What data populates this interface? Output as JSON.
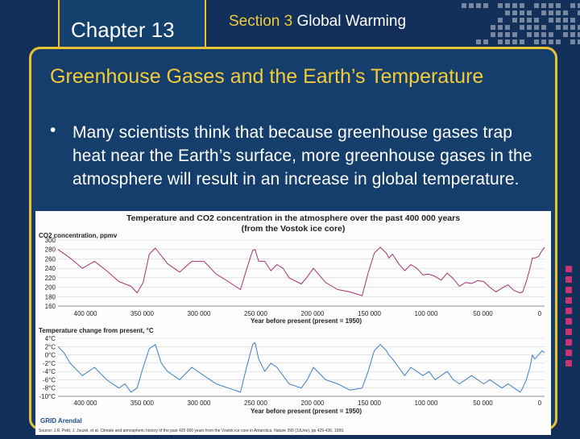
{
  "header": {
    "chapter_label": "Chapter 13",
    "section_number": "Section 3",
    "section_name": "Global Warming"
  },
  "slide": {
    "heading": "Greenhouse Gases and the Earth’s Temperature",
    "bullet_marker": "•",
    "bullet_text": "Many scientists think that because greenhouse gases trap heat near the Earth’s surface, more greenhouse gases in the atmosphere will result in an increase in global temperature."
  },
  "figure": {
    "title_line1": "Temperature and CO2 concentration in the atmosphere over the past 400 000 years",
    "title_line2": "(from the Vostok ice core)",
    "logo_text": "GRID Arendal",
    "source": "Source: J.R. Petit, J. Jouzel, et al. Climate and atmospheric history of the past 420 000 years from the Vostok ice core in Antarctica, Nature 399 (3JUne), pp 429-436, 1999."
  },
  "colors": {
    "background": "#12305a",
    "panel": "#153e6c",
    "accent": "#e9c232",
    "heading": "#f2cb3a",
    "co2_line": "#a8306e",
    "temp_line": "#3f7fc4",
    "side_dots": "#c8356f"
  },
  "chart_data": [
    {
      "type": "line",
      "title": "",
      "ylabel": "CO2 concentration, ppmv",
      "xlabel": "Year before present (present = 1950)",
      "x_ticks": [
        "400 000",
        "350 000",
        "300 000",
        "250 000",
        "200 000",
        "150 000",
        "100 000",
        "50 000",
        "0"
      ],
      "y_ticks": [
        "300",
        "280",
        "260",
        "240",
        "220",
        "200",
        "180",
        "160"
      ],
      "ylim": [
        160,
        300
      ],
      "xlim": [
        400000,
        0
      ],
      "grid": true,
      "series": [
        {
          "x": [
            400000,
            390000,
            380000,
            370000,
            360000,
            350000,
            340000,
            335000,
            330000,
            325000,
            320000,
            310000,
            300000,
            290000,
            280000,
            270000,
            260000,
            250000,
            245000,
            240000,
            238000,
            235000,
            230000,
            225000,
            220000,
            215000,
            210000,
            200000,
            195000,
            190000,
            180000,
            170000,
            160000,
            150000,
            145000,
            140000,
            135000,
            130000,
            128000,
            125000,
            120000,
            115000,
            110000,
            105000,
            100000,
            95000,
            90000,
            85000,
            80000,
            75000,
            70000,
            65000,
            60000,
            55000,
            50000,
            45000,
            40000,
            35000,
            30000,
            25000,
            20000,
            18000,
            15000,
            12000,
            10000,
            8000,
            5000,
            2000,
            0
          ],
          "values": [
            280,
            262,
            240,
            255,
            235,
            212,
            202,
            188,
            210,
            270,
            283,
            250,
            232,
            255,
            255,
            228,
            212,
            195,
            238,
            278,
            280,
            255,
            255,
            235,
            248,
            240,
            220,
            207,
            222,
            240,
            210,
            195,
            190,
            182,
            230,
            272,
            285,
            272,
            262,
            270,
            250,
            235,
            248,
            240,
            226,
            228,
            223,
            215,
            230,
            218,
            202,
            210,
            208,
            214,
            212,
            200,
            190,
            198,
            205,
            193,
            188,
            190,
            212,
            240,
            262,
            262,
            265,
            278,
            285
          ]
        }
      ]
    },
    {
      "type": "line",
      "title": "",
      "ylabel": "Temperature change from present, °C",
      "xlabel": "Year before present (present = 1950)",
      "x_ticks": [
        "400 000",
        "350 000",
        "300 000",
        "250 000",
        "200 000",
        "150 000",
        "100 000",
        "50 000",
        "0"
      ],
      "y_ticks": [
        "4°C",
        "2°C",
        "0°C",
        "-2°C",
        "-4°C",
        "-6°C",
        "-8°C",
        "-10°C"
      ],
      "ylim": [
        -10,
        4
      ],
      "xlim": [
        400000,
        0
      ],
      "grid": true,
      "series": [
        {
          "x": [
            400000,
            395000,
            390000,
            380000,
            370000,
            360000,
            350000,
            345000,
            340000,
            335000,
            330000,
            325000,
            320000,
            315000,
            310000,
            300000,
            290000,
            280000,
            270000,
            260000,
            250000,
            245000,
            240000,
            238000,
            235000,
            230000,
            225000,
            220000,
            215000,
            210000,
            200000,
            195000,
            190000,
            180000,
            170000,
            160000,
            150000,
            145000,
            140000,
            135000,
            130000,
            128000,
            125000,
            120000,
            115000,
            110000,
            105000,
            100000,
            95000,
            90000,
            85000,
            80000,
            75000,
            70000,
            65000,
            60000,
            55000,
            50000,
            45000,
            40000,
            35000,
            30000,
            25000,
            20000,
            18000,
            15000,
            12000,
            10000,
            8000,
            5000,
            2000,
            0
          ],
          "values": [
            2,
            0.5,
            -2,
            -5,
            -3,
            -6,
            -8,
            -7,
            -9,
            -8,
            -3,
            1.5,
            2.5,
            -2,
            -4,
            -6,
            -3,
            -5,
            -7,
            -8,
            -9,
            -3,
            2.5,
            3,
            -1,
            -4,
            -2,
            -3,
            -5,
            -7,
            -8,
            -6,
            -3,
            -6,
            -7,
            -8.5,
            -8,
            -4,
            1,
            2.5,
            1,
            0,
            -1,
            -3,
            -5,
            -3,
            -4,
            -5,
            -4,
            -6,
            -5,
            -4,
            -6,
            -7,
            -6,
            -5,
            -6,
            -7,
            -6,
            -7,
            -8,
            -7,
            -8,
            -9,
            -8,
            -6,
            -3,
            0,
            -1,
            0,
            1,
            0.5
          ]
        }
      ]
    }
  ]
}
